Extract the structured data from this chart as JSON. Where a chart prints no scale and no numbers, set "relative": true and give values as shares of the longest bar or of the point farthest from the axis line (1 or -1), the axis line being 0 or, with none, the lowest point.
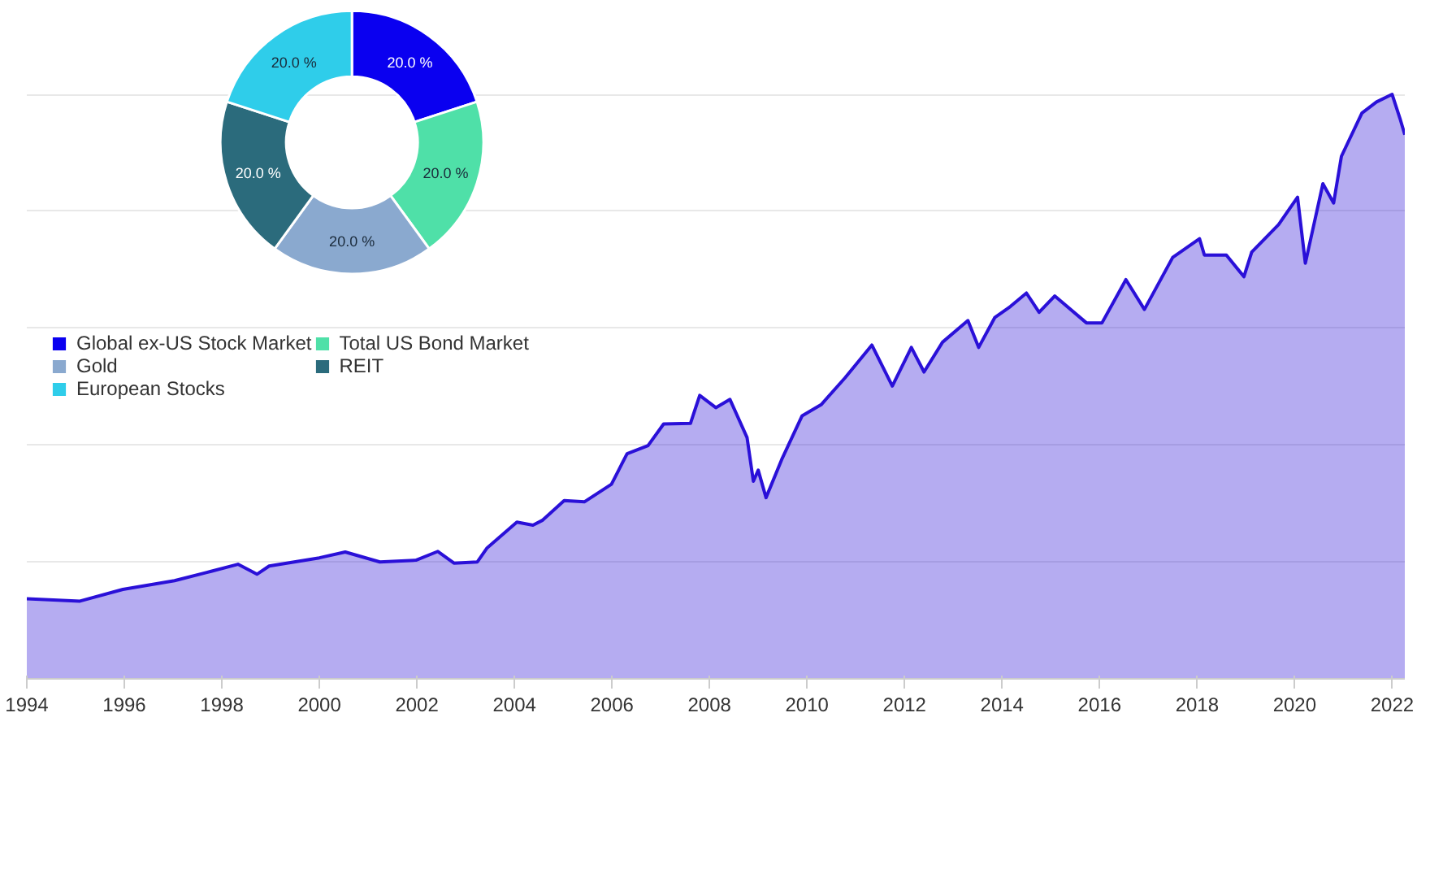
{
  "chart_data": [
    {
      "type": "donut",
      "categories": [
        "Global ex-US Stock Market",
        "Total US Bond Market",
        "Gold",
        "REIT",
        "European Stocks"
      ],
      "values": [
        20,
        20,
        20,
        20,
        20
      ],
      "colors": [
        "#0a00f0",
        "#4fe0a8",
        "#8aa9cf",
        "#2b6b7c",
        "#2fcdea"
      ],
      "value_labels": [
        "20.0 %",
        "20.0 %",
        "20.0 %",
        "20.0 %",
        "20.0 %"
      ],
      "legend": "bottom"
    },
    {
      "type": "area",
      "relative": true,
      "tick_labels": "x",
      "grid": "y",
      "xlim": [
        1994,
        2022.26
      ],
      "xticks": [
        1994,
        1996,
        1998,
        2000,
        2002,
        2004,
        2006,
        2008,
        2010,
        2012,
        2014,
        2016,
        2018,
        2020,
        2022
      ],
      "x": [
        1994.0,
        1995.09,
        1995.97,
        1997.03,
        1997.78,
        1998.33,
        1998.72,
        1998.97,
        2000.0,
        2000.53,
        2001.24,
        2001.98,
        2002.43,
        2002.76,
        2003.24,
        2003.44,
        2004.05,
        2004.38,
        2004.57,
        2005.02,
        2005.44,
        2005.99,
        2006.31,
        2006.74,
        2007.06,
        2007.61,
        2007.8,
        2008.13,
        2008.42,
        2008.77,
        2008.9,
        2009.0,
        2009.16,
        2009.48,
        2009.9,
        2010.29,
        2010.78,
        2011.33,
        2011.75,
        2012.14,
        2012.4,
        2012.78,
        2013.3,
        2013.52,
        2013.85,
        2014.17,
        2014.5,
        2014.76,
        2015.08,
        2015.73,
        2016.05,
        2016.54,
        2016.92,
        2017.5,
        2018.05,
        2018.15,
        2018.6,
        2018.96,
        2019.12,
        2019.67,
        2020.06,
        2020.22,
        2020.58,
        2020.8,
        2020.96,
        2021.38,
        2021.68,
        2022.0,
        2022.16,
        2022.26
      ],
      "series": [
        {
          "color": "#2a10d8",
          "values": [
            0.137,
            0.133,
            0.153,
            0.168,
            0.184,
            0.196,
            0.179,
            0.193,
            0.207,
            0.217,
            0.2,
            0.203,
            0.218,
            0.198,
            0.2,
            0.224,
            0.268,
            0.263,
            0.271,
            0.305,
            0.303,
            0.333,
            0.385,
            0.399,
            0.436,
            0.437,
            0.485,
            0.464,
            0.478,
            0.413,
            0.338,
            0.357,
            0.31,
            0.375,
            0.45,
            0.469,
            0.515,
            0.571,
            0.501,
            0.567,
            0.525,
            0.576,
            0.613,
            0.567,
            0.618,
            0.637,
            0.66,
            0.627,
            0.655,
            0.609,
            0.609,
            0.683,
            0.632,
            0.721,
            0.753,
            0.725,
            0.725,
            0.688,
            0.73,
            0.777,
            0.824,
            0.711,
            0.847,
            0.814,
            0.894,
            0.968,
            0.987,
            1.0,
            0.959,
            0.931
          ]
        }
      ]
    }
  ]
}
